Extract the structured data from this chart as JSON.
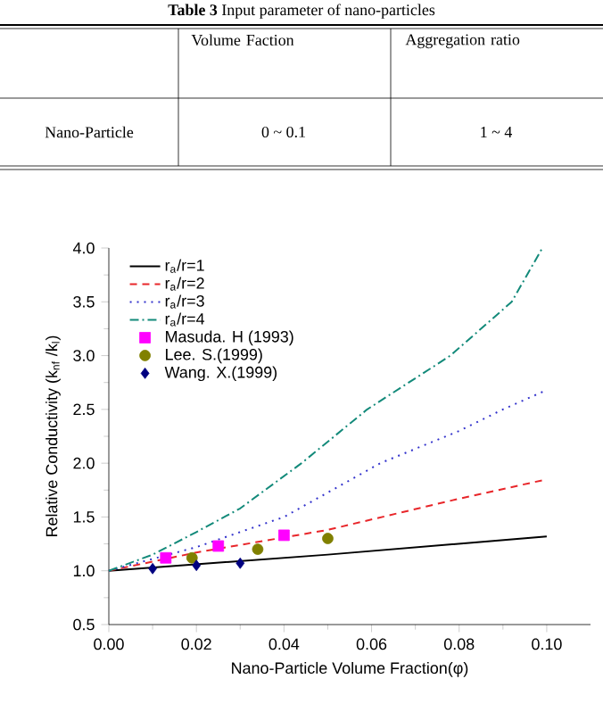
{
  "chart_data": {
    "type": "line",
    "xlabel": "Nano-Particle Volume Fraction(φ)",
    "ylabel": "Relative Conductivity (k$_{nf}$ /k$_{l}$)",
    "annotations": [
      "**Table 3** Input parameter of nano-particles",
      "Volume Faction",
      "Aggregation ratio",
      "Nano-Particle",
      "0 ~ 0.1",
      "1 ~ 4"
    ],
    "xlim": [
      0,
      0.11
    ],
    "ylim": [
      0.5,
      4.0
    ],
    "xticks": [
      {
        "value": 0,
        "label": "0.00"
      },
      {
        "value": 0.02,
        "label": "0.02"
      },
      {
        "value": 0.04,
        "label": "0.04"
      },
      {
        "value": 0.06,
        "label": "0.06"
      },
      {
        "value": 0.08,
        "label": "0.08"
      },
      {
        "value": 0.1,
        "label": "0.10"
      }
    ],
    "yticks": [
      {
        "value": 0.5,
        "label": "0.5"
      },
      {
        "value": 1,
        "label": "1.0"
      },
      {
        "value": 1.5,
        "label": "1.5"
      },
      {
        "value": 2,
        "label": "2.0"
      },
      {
        "value": 2.5,
        "label": "2.5"
      },
      {
        "value": 3,
        "label": "3.0"
      },
      {
        "value": 3.5,
        "label": "3.5"
      },
      {
        "value": 4,
        "label": "4.0"
      }
    ],
    "legend": "top left",
    "grid": false,
    "series": [
      {
        "name": "r$_{a}$/r=1",
        "color": "#000000",
        "line_style": "solid",
        "marker": "none",
        "x": [
          0,
          0.05,
          0.1
        ],
        "values": [
          1.0,
          1.15,
          1.32
        ]
      },
      {
        "name": "r$_{a}$/r=2",
        "color": "#e8262a",
        "line_style": "dashed",
        "marker": "none",
        "x": [
          0,
          0.02,
          0.05,
          0.08,
          0.1
        ],
        "values": [
          1.0,
          1.17,
          1.38,
          1.67,
          1.85
        ]
      },
      {
        "name": "r$_{a}$/r=3",
        "color": "#3333cc",
        "line_style": "dotted",
        "marker": "none",
        "x": [
          0,
          0.02,
          0.04,
          0.062,
          0.08,
          0.09,
          0.1
        ],
        "values": [
          1.0,
          1.22,
          1.5,
          2.0,
          2.3,
          2.5,
          2.68
        ]
      },
      {
        "name": "r$_{a}$/r=4",
        "color": "#138a7a",
        "line_style": "dashdot",
        "marker": "none",
        "x": [
          0,
          0.01,
          0.02,
          0.03,
          0.044,
          0.059,
          0.078,
          0.092,
          0.099
        ],
        "values": [
          1.0,
          1.15,
          1.36,
          1.58,
          2.0,
          2.5,
          3.0,
          3.5,
          4.0
        ]
      },
      {
        "name": "Masuda. H (1993)",
        "type": "scatter",
        "color": "#ff00ff",
        "marker": "square",
        "x": [
          0.013,
          0.025,
          0.04
        ],
        "values": [
          1.12,
          1.23,
          1.33
        ]
      },
      {
        "name": "Lee. S.(1999)",
        "type": "scatter",
        "color": "#808000",
        "marker": "circle",
        "x": [
          0.019,
          0.034,
          0.05
        ],
        "values": [
          1.12,
          1.2,
          1.3
        ]
      },
      {
        "name": "Wang. X.(1999)",
        "type": "scatter",
        "color": "#000080",
        "marker": "diamond",
        "x": [
          0.01,
          0.02,
          0.03
        ],
        "values": [
          1.02,
          1.05,
          1.07
        ]
      }
    ]
  }
}
